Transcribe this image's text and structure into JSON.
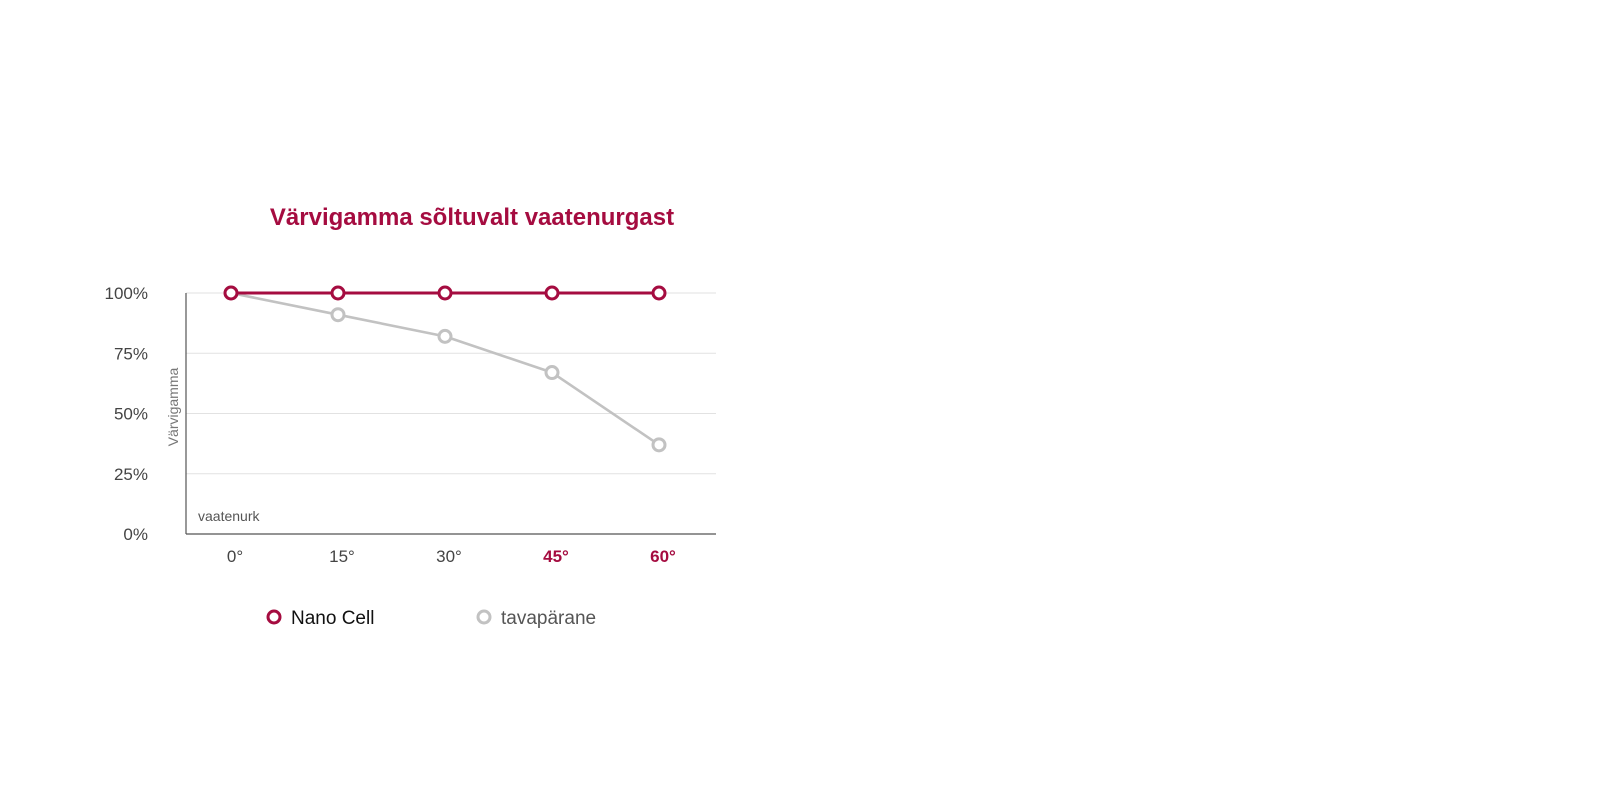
{
  "chart_data": {
    "type": "line",
    "title": "Värvigamma sõltuvalt vaatenurgast",
    "xlabel": "vaatenurk",
    "ylabel": "Värvigamma",
    "categories": [
      "0°",
      "15°",
      "30°",
      "45°",
      "60°"
    ],
    "highlighted_categories": [
      "45°",
      "60°"
    ],
    "y_tick_labels": [
      "0%",
      "25%",
      "50%",
      "75%",
      "100%"
    ],
    "y_ticks": [
      0,
      25,
      50,
      75,
      100
    ],
    "ylim": [
      0,
      100
    ],
    "grid": true,
    "legend_position": "bottom",
    "series": [
      {
        "name": "Nano Cell",
        "values": [
          100,
          100,
          100,
          100,
          100
        ],
        "color": "#a50c40"
      },
      {
        "name": "tavapärane",
        "values": [
          100,
          91,
          82,
          67,
          37
        ],
        "color": "#c2c2c2"
      }
    ]
  },
  "colors": {
    "accent": "#a50c40",
    "muted": "#c2c2c2",
    "text": "#444444",
    "grid": "#e2e2e2",
    "axis": "#555555"
  }
}
